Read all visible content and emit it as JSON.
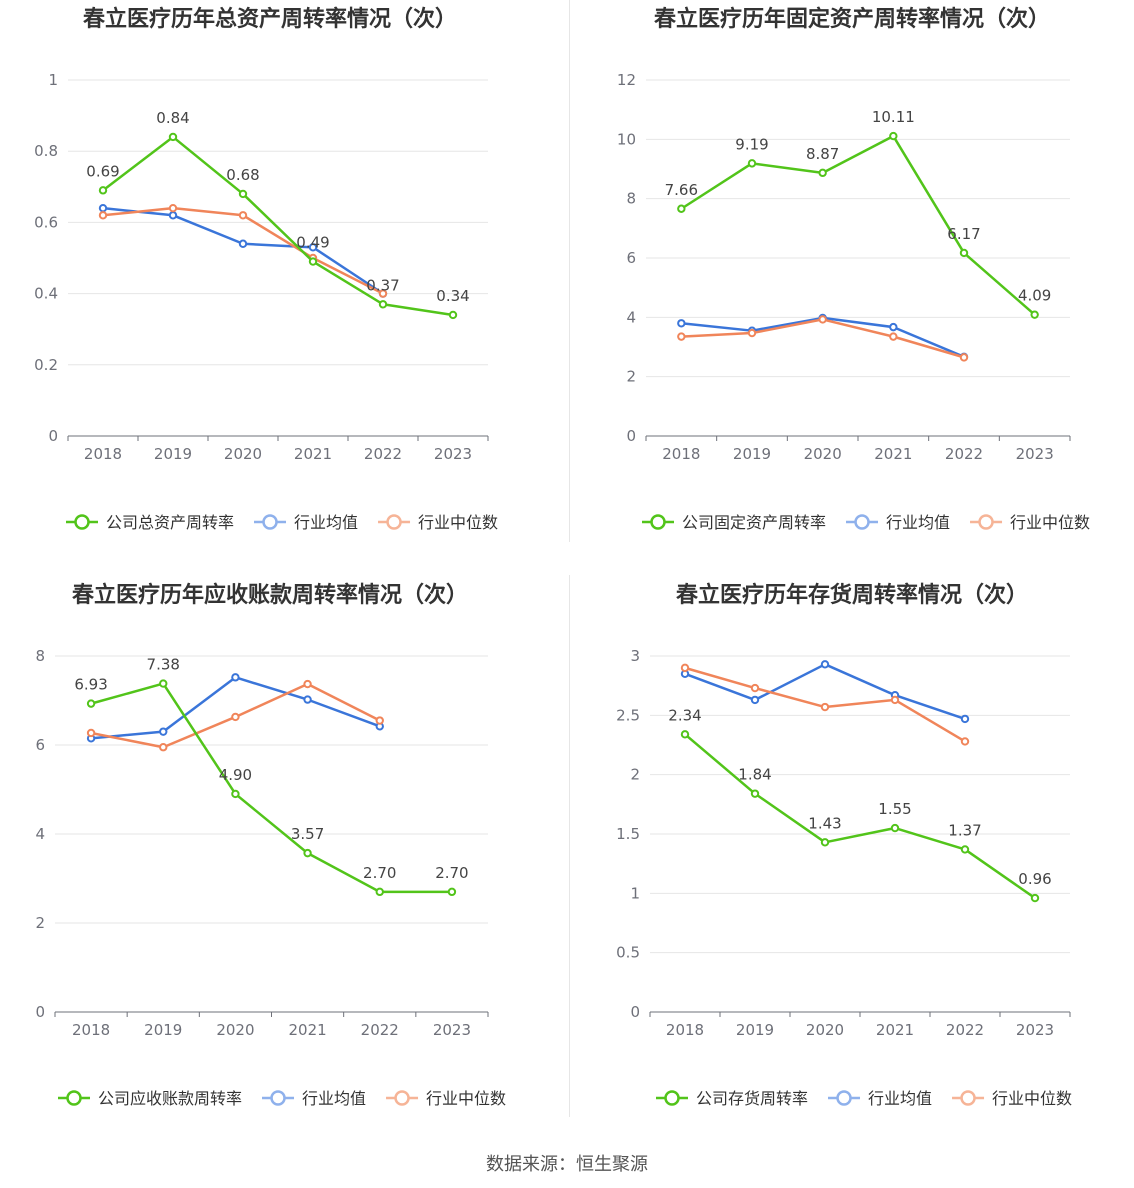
{
  "source_text": "数据来源：恒生聚源",
  "colors": {
    "company": "#52c41a",
    "avg": "#3a75d9",
    "median": "#f0855a",
    "grid": "#e6e6e6",
    "axis": "#6e7079"
  },
  "chart_data": [
    {
      "type": "line",
      "title": "春立医疗历年总资产周转率情况（次）",
      "categories": [
        "2018",
        "2019",
        "2020",
        "2021",
        "2022",
        "2023"
      ],
      "y_ticks": [
        "0",
        "0.2",
        "0.4",
        "0.6",
        "0.8",
        "1"
      ],
      "ylim": [
        0,
        1
      ],
      "series": [
        {
          "name": "公司总资产周转率",
          "key": "company",
          "values": [
            0.69,
            0.84,
            0.68,
            0.49,
            0.37,
            0.34
          ],
          "labels": [
            "0.69",
            "0.84",
            "0.68",
            "0.49",
            "0.37",
            "0.34"
          ]
        },
        {
          "name": "行业均值",
          "key": "avg",
          "values": [
            0.64,
            0.62,
            0.54,
            0.53,
            0.4,
            null
          ]
        },
        {
          "name": "行业中位数",
          "key": "median",
          "values": [
            0.62,
            0.64,
            0.62,
            0.5,
            0.4,
            null
          ]
        }
      ]
    },
    {
      "type": "line",
      "title": "春立医疗历年固定资产周转率情况（次）",
      "categories": [
        "2018",
        "2019",
        "2020",
        "2021",
        "2022",
        "2023"
      ],
      "y_ticks": [
        "0",
        "2",
        "4",
        "6",
        "8",
        "10",
        "12"
      ],
      "ylim": [
        0,
        12
      ],
      "series": [
        {
          "name": "公司固定资产周转率",
          "key": "company",
          "values": [
            7.66,
            9.19,
            8.87,
            10.11,
            6.17,
            4.09
          ],
          "labels": [
            "7.66",
            "9.19",
            "8.87",
            "10.11",
            "6.17",
            "4.09"
          ]
        },
        {
          "name": "行业均值",
          "key": "avg",
          "values": [
            3.8,
            3.55,
            3.98,
            3.67,
            2.67,
            null
          ]
        },
        {
          "name": "行业中位数",
          "key": "median",
          "values": [
            3.35,
            3.47,
            3.93,
            3.35,
            2.65,
            null
          ]
        }
      ]
    },
    {
      "type": "line",
      "title": "春立医疗历年应收账款周转率情况（次）",
      "categories": [
        "2018",
        "2019",
        "2020",
        "2021",
        "2022",
        "2023"
      ],
      "y_ticks": [
        "0",
        "2",
        "4",
        "6",
        "8"
      ],
      "ylim": [
        0,
        8
      ],
      "series": [
        {
          "name": "公司应收账款周转率",
          "key": "company",
          "values": [
            6.93,
            7.38,
            4.9,
            3.57,
            2.7,
            2.7
          ],
          "labels": [
            "6.93",
            "7.38",
            "4.90",
            "3.57",
            "2.70",
            "2.70"
          ]
        },
        {
          "name": "行业均值",
          "key": "avg",
          "values": [
            6.15,
            6.3,
            7.52,
            7.02,
            6.42,
            null
          ]
        },
        {
          "name": "行业中位数",
          "key": "median",
          "values": [
            6.27,
            5.95,
            6.63,
            7.37,
            6.55,
            null
          ]
        }
      ]
    },
    {
      "type": "line",
      "title": "春立医疗历年存货周转率情况（次）",
      "categories": [
        "2018",
        "2019",
        "2020",
        "2021",
        "2022",
        "2023"
      ],
      "y_ticks": [
        "0",
        "0.5",
        "1",
        "1.5",
        "2",
        "2.5",
        "3"
      ],
      "ylim": [
        0,
        3
      ],
      "series": [
        {
          "name": "公司存货周转率",
          "key": "company",
          "values": [
            2.34,
            1.84,
            1.43,
            1.55,
            1.37,
            0.96
          ],
          "labels": [
            "2.34",
            "1.84",
            "1.43",
            "1.55",
            "1.37",
            "0.96"
          ]
        },
        {
          "name": "行业均值",
          "key": "avg",
          "values": [
            2.85,
            2.63,
            2.93,
            2.67,
            2.47,
            null
          ]
        },
        {
          "name": "行业中位数",
          "key": "median",
          "values": [
            2.9,
            2.73,
            2.57,
            2.63,
            2.28,
            null
          ]
        }
      ]
    }
  ]
}
